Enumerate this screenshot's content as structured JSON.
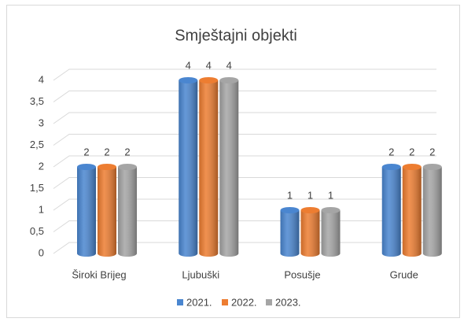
{
  "chart_data": {
    "type": "bar",
    "title": "Smještajni objekti",
    "categories": [
      "Široki Brijeg",
      "Ljubuški",
      "Posušje",
      "Grude"
    ],
    "series": [
      {
        "name": "2021.",
        "color": "#4a86d0",
        "values": [
          2,
          4,
          1,
          2
        ]
      },
      {
        "name": "2022.",
        "color": "#ed7d31",
        "values": [
          2,
          4,
          1,
          2
        ]
      },
      {
        "name": "2023.",
        "color": "#a5a5a5",
        "values": [
          2,
          4,
          1,
          2
        ]
      }
    ],
    "ylim": [
      0,
      4
    ],
    "yticks": [
      0,
      {
        "value": 0.5,
        "label": "0,5"
      },
      1,
      {
        "value": 1.5,
        "label": "1,5"
      },
      2,
      {
        "value": 2.5,
        "label": "2,5"
      },
      3,
      {
        "value": 3.5,
        "label": "3,5"
      },
      4
    ],
    "grid": true,
    "legend": "bottom",
    "data_labels": true
  }
}
